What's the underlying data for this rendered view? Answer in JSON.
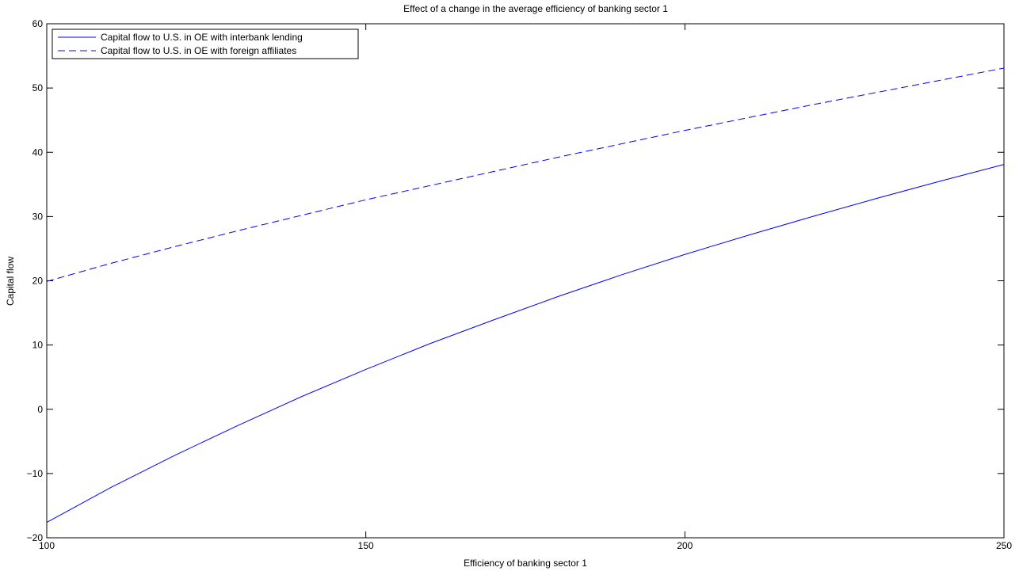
{
  "chart_data": {
    "type": "line",
    "title": "Effect of a change in the average efficiency of banking sector 1",
    "xlabel": "Efficiency of banking sector 1",
    "ylabel": "Capital flow",
    "xlim": [
      100,
      250
    ],
    "ylim": [
      -20,
      60
    ],
    "xticks": [
      100,
      150,
      200,
      250
    ],
    "yticks": [
      -20,
      -10,
      0,
      10,
      20,
      30,
      40,
      50,
      60
    ],
    "xtick_labels": [
      "100",
      "150",
      "200",
      "250"
    ],
    "ytick_labels": [
      "−20",
      "−10",
      "0",
      "10",
      "20",
      "30",
      "40",
      "50",
      "60"
    ],
    "grid": false,
    "legend_position": "top-left",
    "series": [
      {
        "name": "Capital flow to U.S. in OE with interbank lending",
        "style": "solid",
        "color": "#0000ff",
        "x": [
          100,
          110,
          120,
          130,
          140,
          150,
          160,
          170,
          180,
          190,
          200,
          210,
          220,
          230,
          240,
          250
        ],
        "y": [
          -17.6,
          -12.2,
          -7.2,
          -2.5,
          2.0,
          6.2,
          10.2,
          13.9,
          17.5,
          20.9,
          24.1,
          27.1,
          30.0,
          32.8,
          35.5,
          38.1
        ]
      },
      {
        "name": "Capital flow to U.S. in OE with foreign affiliates",
        "style": "dashed",
        "color": "#0000ff",
        "x": [
          100,
          110,
          120,
          130,
          140,
          150,
          160,
          170,
          180,
          190,
          200,
          210,
          220,
          230,
          240,
          250
        ],
        "y": [
          19.9,
          22.7,
          25.3,
          27.8,
          30.2,
          32.6,
          34.8,
          37.0,
          39.2,
          41.3,
          43.4,
          45.4,
          47.4,
          49.3,
          51.2,
          53.1
        ]
      }
    ]
  }
}
